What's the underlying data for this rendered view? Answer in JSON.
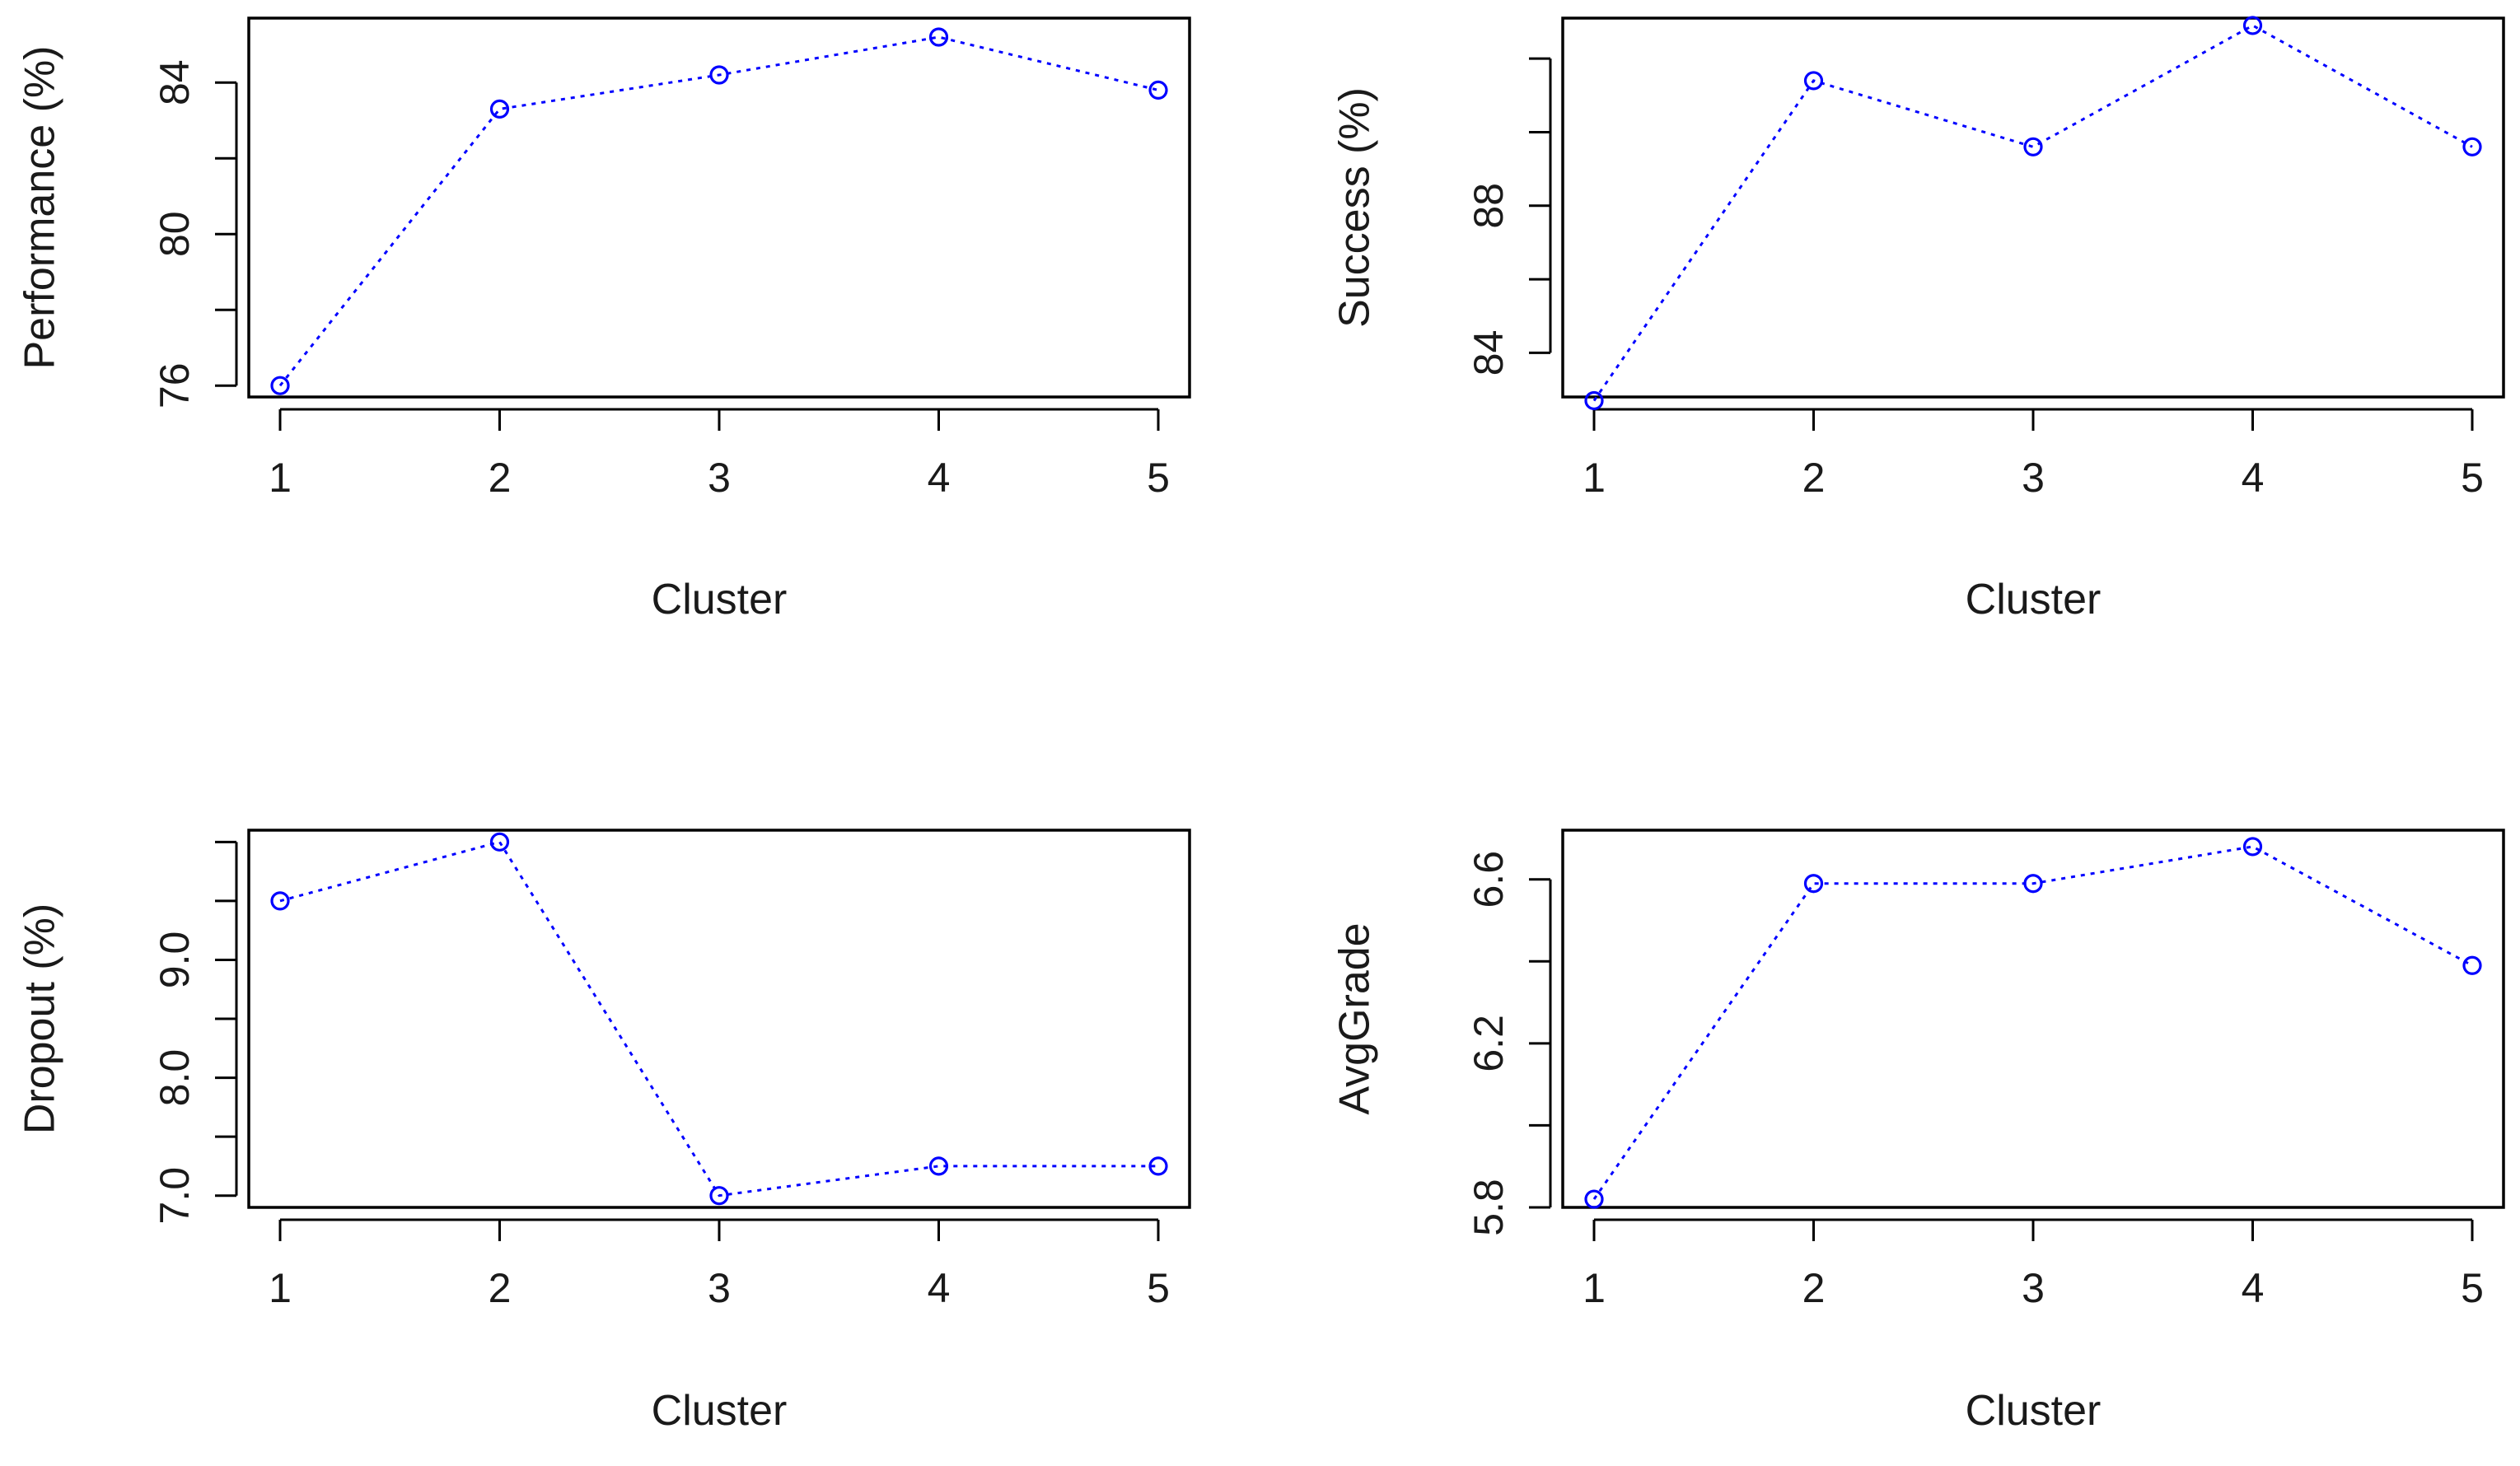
{
  "series_color": "#0000ff",
  "chart_data": [
    {
      "type": "line",
      "xlabel": "Cluster",
      "ylabel": "Performance (%)",
      "x": [
        1,
        2,
        3,
        4,
        5
      ],
      "values": [
        76.0,
        83.3,
        84.2,
        85.2,
        83.8
      ],
      "ylim": [
        75.7,
        85.7
      ],
      "xticks": [
        "1",
        "2",
        "3",
        "4",
        "5"
      ],
      "yticks": [
        76,
        78,
        80,
        82,
        84
      ],
      "ytick_labels": [
        "76",
        "",
        "80",
        "",
        "84"
      ]
    },
    {
      "type": "line",
      "xlabel": "Cluster",
      "ylabel": "Success (%)",
      "x": [
        1,
        2,
        3,
        4,
        5
      ],
      "values": [
        82.7,
        91.4,
        89.6,
        92.9,
        89.6
      ],
      "ylim": [
        82.8,
        93.1
      ],
      "xticks": [
        "1",
        "2",
        "3",
        "4",
        "5"
      ],
      "yticks": [
        84,
        86,
        88,
        90,
        92
      ],
      "ytick_labels": [
        "84",
        "",
        "88",
        "",
        ""
      ]
    },
    {
      "type": "line",
      "xlabel": "Cluster",
      "ylabel": "Dropout (%)",
      "x": [
        1,
        2,
        3,
        4,
        5
      ],
      "values": [
        9.5,
        10.0,
        7.0,
        7.25,
        7.25
      ],
      "ylim": [
        6.9,
        10.1
      ],
      "xticks": [
        "1",
        "2",
        "3",
        "4",
        "5"
      ],
      "yticks": [
        7.0,
        7.5,
        8.0,
        8.5,
        9.0,
        9.5,
        10.0
      ],
      "ytick_labels": [
        "7.0",
        "",
        "8.0",
        "",
        "9.0",
        "",
        ""
      ]
    },
    {
      "type": "line",
      "xlabel": "Cluster",
      "ylabel": "AvgGrade",
      "x": [
        1,
        2,
        3,
        4,
        5
      ],
      "values": [
        5.82,
        6.59,
        6.59,
        6.68,
        6.39
      ],
      "ylim": [
        5.8,
        6.72
      ],
      "xticks": [
        "1",
        "2",
        "3",
        "4",
        "5"
      ],
      "yticks": [
        5.8,
        6.0,
        6.2,
        6.4,
        6.6
      ],
      "ytick_labels": [
        "5.8",
        "",
        "6.2",
        "",
        "6.6"
      ]
    }
  ]
}
